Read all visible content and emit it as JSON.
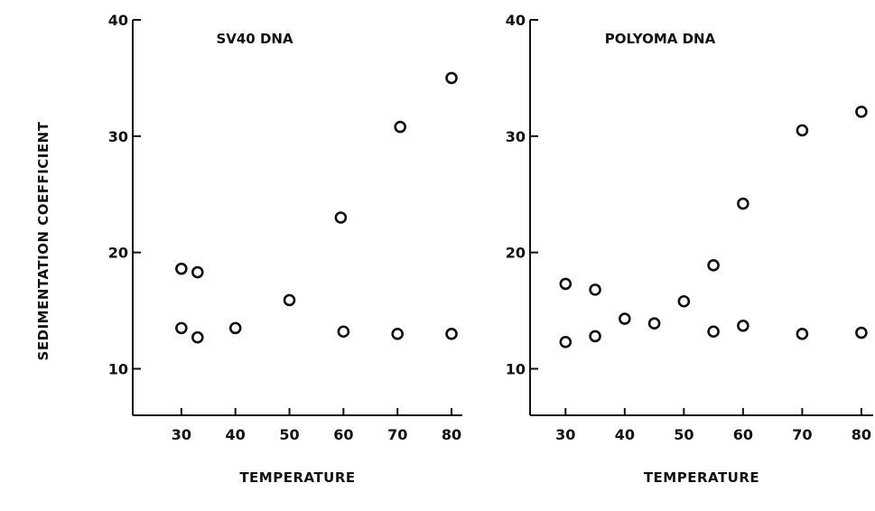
{
  "ylabel": "SEDIMENTATION COEFFICIENT",
  "chart_data": [
    {
      "type": "scatter",
      "title": "SV40 DNA",
      "xlabel": "TEMPERATURE",
      "xlim": [
        21,
        82
      ],
      "ylim": [
        6,
        40
      ],
      "xticks": [
        30,
        40,
        50,
        60,
        70,
        80
      ],
      "yticks": [
        10,
        20,
        30,
        40
      ],
      "grid": false,
      "points": [
        {
          "x": 30,
          "y": 18.6
        },
        {
          "x": 30,
          "y": 13.5
        },
        {
          "x": 33,
          "y": 18.3
        },
        {
          "x": 33,
          "y": 12.7
        },
        {
          "x": 40,
          "y": 13.5
        },
        {
          "x": 50,
          "y": 15.9
        },
        {
          "x": 59.5,
          "y": 23.0
        },
        {
          "x": 60,
          "y": 13.2
        },
        {
          "x": 70.5,
          "y": 30.8
        },
        {
          "x": 70,
          "y": 13.0
        },
        {
          "x": 80,
          "y": 35.0
        },
        {
          "x": 80,
          "y": 13.0
        }
      ]
    },
    {
      "type": "scatter",
      "title": "POLYOMA DNA",
      "xlabel": "TEMPERATURE",
      "xlim": [
        24,
        82
      ],
      "ylim": [
        6,
        40
      ],
      "xticks": [
        30,
        40,
        50,
        60,
        70,
        80
      ],
      "yticks": [
        10,
        20,
        30,
        40
      ],
      "grid": false,
      "points": [
        {
          "x": 30,
          "y": 17.3
        },
        {
          "x": 30,
          "y": 12.3
        },
        {
          "x": 35,
          "y": 16.8
        },
        {
          "x": 35,
          "y": 12.8
        },
        {
          "x": 40,
          "y": 14.3
        },
        {
          "x": 45,
          "y": 13.9
        },
        {
          "x": 50,
          "y": 15.8
        },
        {
          "x": 55,
          "y": 18.9
        },
        {
          "x": 55,
          "y": 13.2
        },
        {
          "x": 60,
          "y": 24.2
        },
        {
          "x": 60,
          "y": 13.7
        },
        {
          "x": 70,
          "y": 30.5
        },
        {
          "x": 70,
          "y": 13.0
        },
        {
          "x": 80,
          "y": 32.1
        },
        {
          "x": 80,
          "y": 13.1
        }
      ]
    }
  ]
}
